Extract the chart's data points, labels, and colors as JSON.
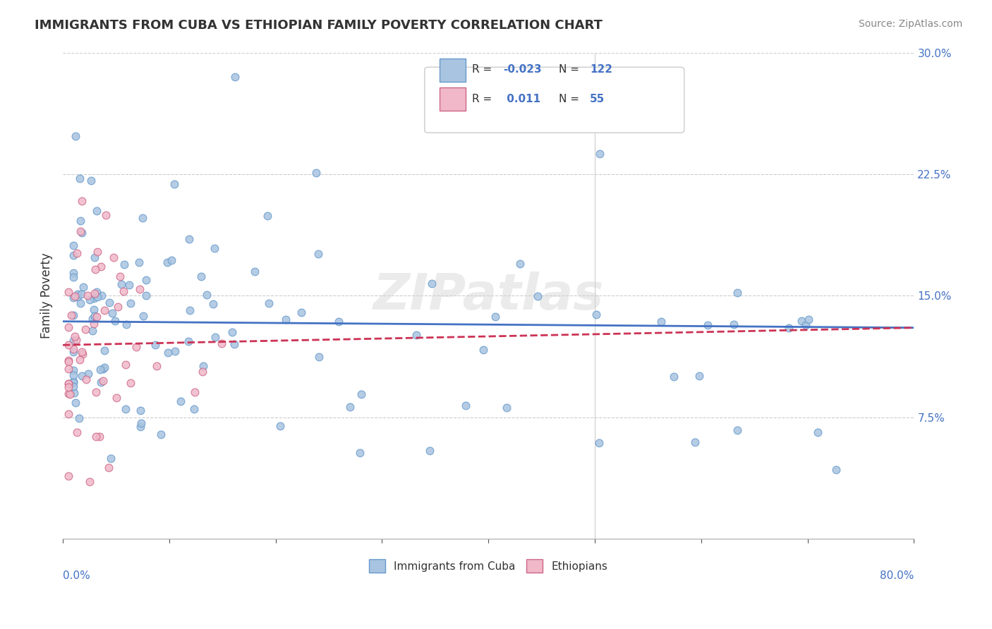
{
  "title": "IMMIGRANTS FROM CUBA VS ETHIOPIAN FAMILY POVERTY CORRELATION CHART",
  "source_text": "Source: ZipAtlas.com",
  "ylabel": "Family Poverty",
  "xlim": [
    0.0,
    0.8
  ],
  "ylim": [
    0.0,
    0.3
  ],
  "xtick_vals": [
    0.0,
    0.1,
    0.2,
    0.3,
    0.4,
    0.5,
    0.6,
    0.7,
    0.8
  ],
  "ytick_labels": [
    "7.5%",
    "15.0%",
    "22.5%",
    "30.0%"
  ],
  "ytick_vals": [
    0.075,
    0.15,
    0.225,
    0.3
  ],
  "cuba_color": "#a8c4e0",
  "cuba_edge_color": "#6699cc",
  "ethiopian_color": "#f0b8c8",
  "ethiopian_edge_color": "#cc6688",
  "cuba_R": -0.023,
  "cuba_N": 122,
  "ethiopian_R": 0.011,
  "ethiopian_N": 55,
  "legend_label_cuba": "Immigrants from Cuba",
  "legend_label_eth": "Ethiopians",
  "watermark": "ZIPatlas",
  "background_color": "#ffffff",
  "grid_color": "#cccccc",
  "title_color": "#333333",
  "blue_text_color": "#4472c4",
  "trend_cuba_color": "#4472c4",
  "trend_eth_color": "#cc3355"
}
